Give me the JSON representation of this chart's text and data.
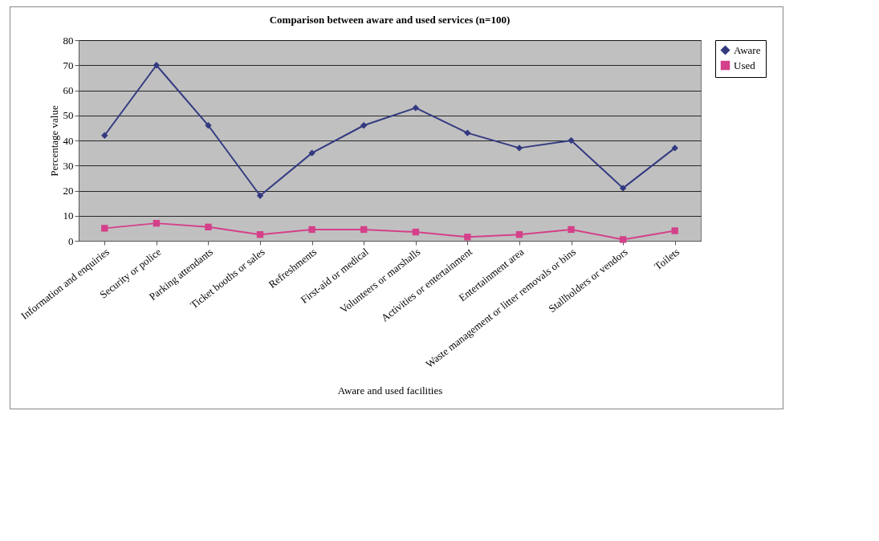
{
  "chart_data": {
    "type": "line",
    "title": "Comparison between aware and used services (n=100)",
    "xlabel": "Aware and used facilities",
    "ylabel": "Percentage value",
    "categories": [
      "Information and enquiries",
      "Security or police",
      "Parking attendants",
      "Ticket booths or sales",
      "Refreshments",
      "First-aid or medical",
      "Volunteers or marshalls",
      "Activities or entertainment",
      "Entertainment area",
      "Waste management or litter removals or bins",
      "Stallholders or vendors",
      "Toilets"
    ],
    "series": [
      {
        "name": "Aware",
        "color": "#333a80",
        "marker": "diamond",
        "values": [
          42,
          70,
          46,
          18,
          35,
          46,
          53,
          43,
          37,
          40,
          21,
          37
        ]
      },
      {
        "name": "Used",
        "color": "#d4408a",
        "marker": "square",
        "values": [
          5,
          7,
          5.5,
          2.5,
          4.5,
          4.5,
          3.5,
          1.5,
          2.5,
          4.5,
          0.5,
          4
        ]
      }
    ],
    "ylim": [
      0,
      80
    ],
    "yticks": [
      0,
      10,
      20,
      30,
      40,
      50,
      60,
      70,
      80
    ],
    "grid": "y",
    "legend": "right"
  }
}
